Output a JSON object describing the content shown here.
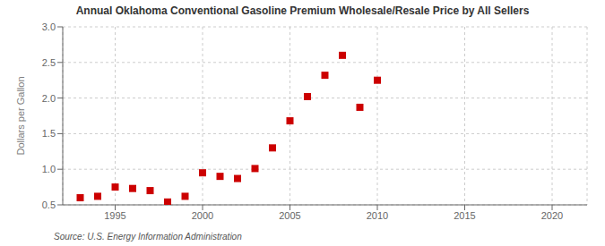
{
  "chart_data": {
    "type": "scatter",
    "title": "Annual Oklahoma Conventional Gasoline Premium Wholesale/Resale Price by All Sellers",
    "ylabel": "Dollars per Gallon",
    "annotations": [
      "Source: U.S. Energy Information Administration"
    ],
    "x": [
      1993,
      1994,
      1995,
      1996,
      1997,
      1998,
      1999,
      2000,
      2001,
      2002,
      2003,
      2004,
      2005,
      2006,
      2007,
      2008,
      2009,
      2010
    ],
    "values": [
      0.6,
      0.62,
      0.75,
      0.73,
      0.7,
      0.54,
      0.62,
      0.95,
      0.9,
      0.87,
      1.01,
      1.3,
      1.68,
      2.02,
      2.32,
      2.6,
      1.87,
      2.25
    ],
    "color": "#cc0000",
    "marker": "square",
    "xlim": [
      1992,
      2022
    ],
    "ylim": [
      0.5,
      3.0
    ],
    "xticks": [
      1995,
      2000,
      2005,
      2010,
      2015,
      2020
    ],
    "yticks": [
      0.5,
      {
        "value": 1.0,
        "label": "1.0"
      },
      1.5,
      {
        "value": 2.0,
        "label": "2.0"
      },
      2.5,
      {
        "value": 3.0,
        "label": "3.0"
      }
    ],
    "grid": true
  }
}
